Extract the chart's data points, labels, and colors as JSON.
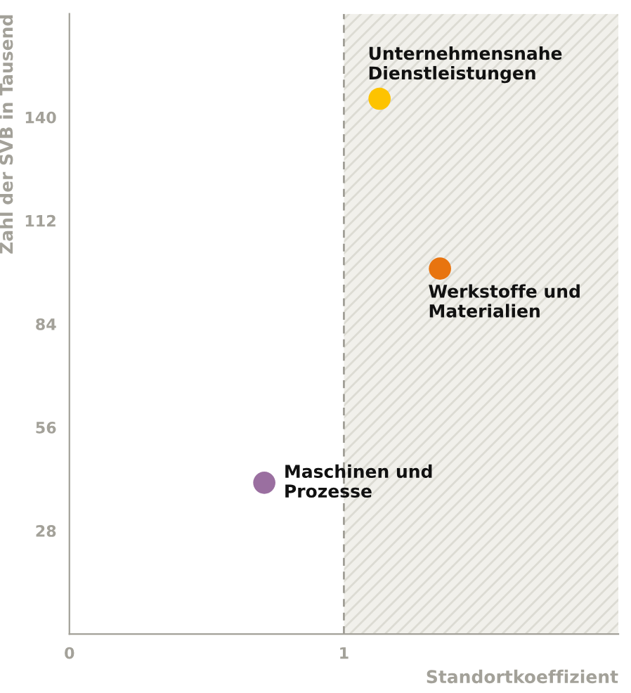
{
  "chart_data": {
    "type": "scatter",
    "xlabel": "Standortkoeffizient",
    "ylabel": "Zahl der SVB in Tausend",
    "x": [
      1.13,
      1.35,
      0.71
    ],
    "values": [
      145,
      99,
      41
    ],
    "colors": [
      "#fdc300",
      "#e8740f",
      "#9a6fa0"
    ],
    "xlim": [
      0,
      2
    ],
    "ylim": [
      0,
      168
    ],
    "xticks": [
      0,
      1
    ],
    "yticks": [
      28,
      56,
      84,
      112,
      140
    ],
    "grid": false,
    "marker": "circle",
    "ref_lines": [
      {
        "axis": "x",
        "value": 1,
        "label": null,
        "color": "#a09e96",
        "line_style": "dashed"
      }
    ],
    "bands": [
      {
        "axis": "x",
        "from": 1,
        "to": 2,
        "label": null,
        "color": "#f1f0eb"
      }
    ],
    "annotations": [
      {
        "text": "Unternehmensnahe\nDienstleistungen",
        "x": 1.13,
        "y": 145
      },
      {
        "text": "Werkstoffe und\nMaterialien",
        "x": 1.35,
        "y": 99
      },
      {
        "text": "Maschinen und\nProzesse",
        "x": 0.71,
        "y": 41
      }
    ]
  }
}
